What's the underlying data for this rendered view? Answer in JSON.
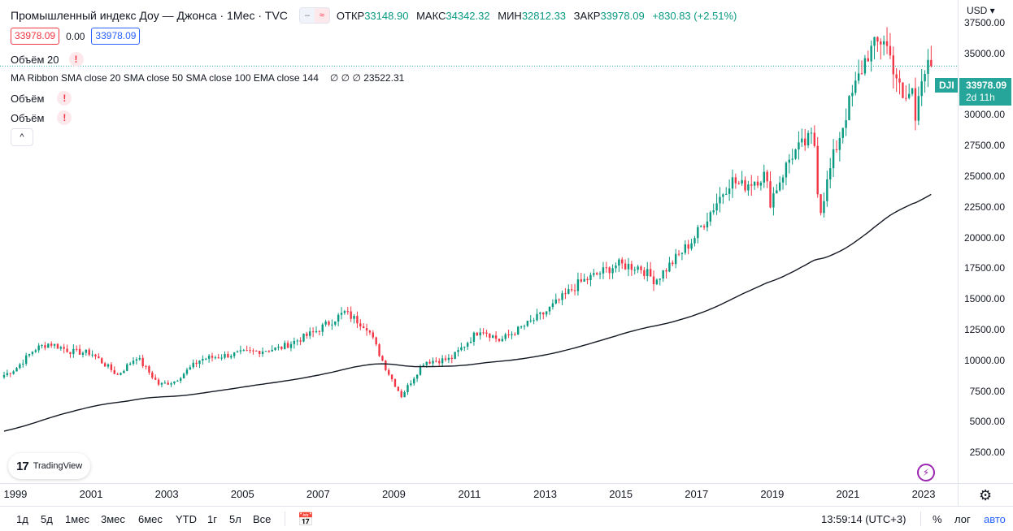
{
  "legend": {
    "title": "Промышленный индекс Доу — Джонса · 1Мес · TVC",
    "open_label": "ОТКР",
    "open_value": "33148.90",
    "high_label": "МАКС",
    "high_value": "34342.32",
    "low_label": "МИН",
    "low_value": "32812.33",
    "close_label": "ЗАКР",
    "close_value": "33978.09",
    "change": "+830.83 (+2.51%)",
    "sell_price": "33978.09",
    "spread": "0.00",
    "buy_price": "33978.09",
    "volume20_label": "Объём 20",
    "ma_label": "MA Ribbon SMA close 20 SMA close 50 SMA close 100 EMA close 144",
    "ma_values": "∅ ∅ ∅ 23522.31",
    "volume_label_1": "Объём",
    "volume_label_2": "Объём",
    "warn_symbol": "!",
    "collapse_symbol": "^",
    "pill_symbol_1": "–",
    "pill_symbol_2": "≈"
  },
  "price_scale": {
    "currency": "USD ▾",
    "ticks": [
      "37500.00",
      "35000.00",
      "32500.00",
      "30000.00",
      "27500.00",
      "25000.00",
      "22500.00",
      "20000.00",
      "17500.00",
      "15000.00",
      "12500.00",
      "10000.00",
      "7500.00",
      "5000.00",
      "2500.00"
    ],
    "last_symbol": "DJI",
    "last_price": "33978.09",
    "countdown": "2d 11h"
  },
  "time_axis": {
    "years": [
      "1999",
      "2001",
      "2003",
      "2005",
      "2007",
      "2009",
      "2011",
      "2013",
      "2015",
      "2017",
      "2019",
      "2021",
      "2023"
    ]
  },
  "bottom_bar": {
    "ranges": [
      "1д",
      "5д",
      "1мес",
      "3мес",
      "6мес",
      "YTD",
      "1г",
      "5л",
      "Все"
    ],
    "clock": "13:59:14 (UTC+3)",
    "percent": "%",
    "log": "лог",
    "auto": "авто"
  },
  "branding": {
    "logo_text": "TradingView",
    "logo_mark": "17"
  },
  "colors": {
    "up": "#089981",
    "down": "#f23645",
    "ema": "#131722",
    "accent": "#2962ff",
    "last": "#26a69a"
  },
  "chart_data": {
    "type": "candlestick",
    "title": "Промышленный индекс Доу — Джонса · 1Мес · TVC",
    "interval": "1M",
    "x_start_year": 1998.7,
    "x_end_year": 2023.3,
    "ylim": [
      0,
      38500
    ],
    "last_price": 33978.09,
    "ema_period": 144,
    "ema_last": 23522.31,
    "anchors": [
      [
        1998.7,
        8800
      ],
      [
        1999.0,
        9300
      ],
      [
        1999.5,
        10900
      ],
      [
        1999.9,
        11400
      ],
      [
        2000.5,
        10700
      ],
      [
        2001.0,
        10600
      ],
      [
        2001.7,
        8800
      ],
      [
        2002.2,
        10300
      ],
      [
        2002.8,
        8000
      ],
      [
        2003.2,
        8300
      ],
      [
        2003.9,
        10100
      ],
      [
        2005.0,
        10600
      ],
      [
        2006.0,
        11000
      ],
      [
        2006.9,
        12300
      ],
      [
        2007.7,
        13900
      ],
      [
        2008.3,
        12700
      ],
      [
        2008.8,
        9300
      ],
      [
        2009.2,
        7100
      ],
      [
        2009.8,
        9900
      ],
      [
        2010.5,
        10100
      ],
      [
        2011.3,
        12600
      ],
      [
        2011.8,
        11600
      ],
      [
        2012.5,
        12900
      ],
      [
        2013.0,
        13900
      ],
      [
        2013.9,
        16300
      ],
      [
        2014.9,
        17800
      ],
      [
        2015.5,
        17600
      ],
      [
        2015.9,
        16500
      ],
      [
        2016.3,
        17800
      ],
      [
        2016.9,
        19800
      ],
      [
        2017.9,
        24700
      ],
      [
        2018.2,
        24200
      ],
      [
        2018.8,
        25100
      ],
      [
        2018.95,
        23000
      ],
      [
        2019.5,
        26700
      ],
      [
        2020.1,
        28300
      ],
      [
        2020.25,
        21900
      ],
      [
        2020.6,
        26400
      ],
      [
        2021.0,
        30600
      ],
      [
        2021.5,
        34900
      ],
      [
        2021.95,
        36300
      ],
      [
        2022.3,
        33000
      ],
      [
        2022.45,
        31000
      ],
      [
        2022.7,
        32000
      ],
      [
        2022.75,
        28700
      ],
      [
        2022.9,
        33200
      ],
      [
        2023.2,
        33978
      ]
    ]
  }
}
